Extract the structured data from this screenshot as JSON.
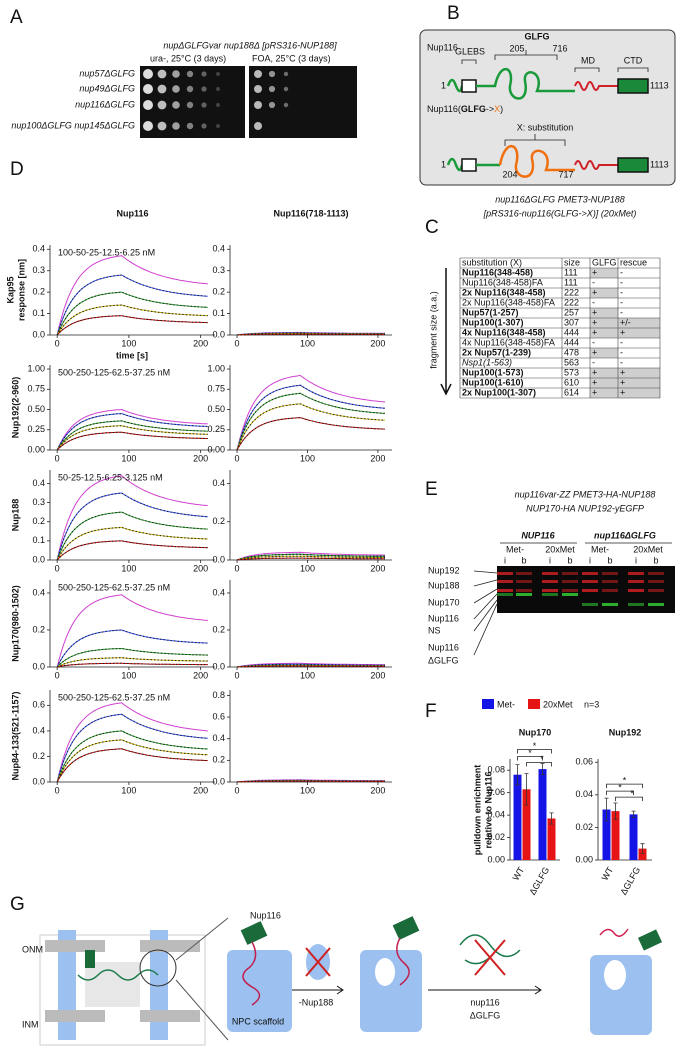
{
  "A": {
    "label": "A",
    "title": "nupΔGLFGvar nup188Δ [pRS316-NUP188]",
    "conditions": [
      "ura-, 25°C (3 days)",
      "FOA, 25°C (3 days)"
    ],
    "strains": [
      "nup57ΔGLFG",
      "nup49ΔGLFG",
      "nup116ΔGLFG",
      "nup100ΔGLFG nup145ΔGLFG"
    ]
  },
  "B": {
    "label": "B",
    "protein": "Nup116",
    "domains": [
      "GLEBS",
      "GLFG",
      "MD",
      "CTD"
    ],
    "residues": [
      1,
      205,
      716,
      1113
    ],
    "variant": [
      "Nup116(",
      "GLFG",
      "->",
      "X",
      ")"
    ],
    "substitution": "X: substitution",
    "variant_residues": [
      1,
      204,
      717,
      1113
    ]
  },
  "C": {
    "label": "C",
    "title_lines": [
      "nup116ΔGLFG  PMET3-NUP188",
      "[pRS316-nup116(GLFG->X)]  (20xMet)"
    ],
    "axis_label": "fragment size (a.a.)",
    "header": [
      "substitution (X)",
      "size",
      "GLFG",
      "rescue"
    ],
    "rows": [
      [
        "Nup116(348-458)",
        111,
        "+",
        "-"
      ],
      [
        "Nup116(348-458)FA",
        111,
        "-",
        "-"
      ],
      [
        "2x Nup116(348-458)",
        222,
        "+",
        "-"
      ],
      [
        "2x Nup116(348-458)FA",
        222,
        "-",
        "-"
      ],
      [
        "Nup57(1-257)",
        257,
        "+",
        "-"
      ],
      [
        "Nup100(1-307)",
        307,
        "+",
        "+/-"
      ],
      [
        "4x Nup116(348-458)",
        444,
        "+",
        "+"
      ],
      [
        "4x Nup116(348-458)FA",
        444,
        "-",
        "-"
      ],
      [
        "2x Nup57(1-239)",
        478,
        "+",
        "-"
      ],
      [
        "Nsp1(1-563)",
        563,
        "-",
        "-"
      ],
      [
        "Nup100(1-573)",
        573,
        "+",
        "+"
      ],
      [
        "Nup100(1-610)",
        610,
        "+",
        "+"
      ],
      [
        "2x Nup100(1-307)",
        614,
        "+",
        "+"
      ]
    ]
  },
  "D": {
    "label": "D",
    "columns": [
      "Nup116",
      "Nup116(718-1113)"
    ],
    "time_label": "time [s]",
    "xlim": [
      -10,
      220
    ],
    "xticks": [
      0,
      100,
      200
    ],
    "colors": [
      "#d040d0",
      "#3050ff",
      "#20a020",
      "#c8b400",
      "#c00000"
    ],
    "rows": [
      {
        "ylabel": [
          "Kap95",
          "response [nm]"
        ],
        "conc": "100-50-25-12.5-6.25 nM",
        "plots": [
          {
            "ylim": [
              0,
              0.42
            ],
            "yticks": [
              {
                "value": 0,
                "label": "0.0"
              },
              0.1,
              0.2,
              0.3,
              0.4
            ],
            "peaks": [
              0.37,
              0.28,
              0.2,
              0.14,
              0.09
            ]
          },
          {
            "ylim": [
              0,
              0.42
            ],
            "yticks": [
              {
                "value": 0,
                "label": "0.0"
              },
              0.1,
              0.2,
              0.3,
              0.4
            ],
            "peaks": [
              0.012,
              0.01,
              0.008,
              0.006,
              0.004
            ]
          }
        ]
      },
      {
        "ylabel": [
          "Nup192(2-960)"
        ],
        "conc": "500-250-125-62.5-37.25 nM",
        "plots": [
          {
            "ylim": [
              0,
              1.05
            ],
            "yticks": [
              {
                "value": 0,
                "label": "0.00"
              },
              0.25,
              {
                "value": 0.5,
                "label": "0.50"
              },
              0.75,
              {
                "value": 1,
                "label": "1.00"
              }
            ],
            "peaks": [
              0.5,
              0.45,
              0.36,
              0.3,
              0.22
            ]
          },
          {
            "ylim": [
              0,
              1.05
            ],
            "yticks": [
              {
                "value": 0,
                "label": "0.00"
              },
              0.25,
              {
                "value": 0.5,
                "label": "0.50"
              },
              0.75,
              {
                "value": 1,
                "label": "1.00"
              }
            ],
            "peaks": [
              0.92,
              0.8,
              0.7,
              0.57,
              0.4
            ]
          }
        ]
      },
      {
        "ylabel": [
          "Nup188"
        ],
        "conc": "50-25-12.5-6.25-3.125 nM",
        "plots": [
          {
            "ylim": [
              0,
              0.47
            ],
            "yticks": [
              {
                "value": 0,
                "label": "0.0"
              },
              0.1,
              0.2,
              0.3,
              0.4
            ],
            "peaks": [
              0.44,
              0.35,
              0.25,
              0.17,
              0.1
            ]
          },
          {
            "ylim": [
              0,
              0.47
            ],
            "yticks": [
              {
                "value": 0,
                "label": "0.0"
              },
              0.2,
              0.4
            ],
            "peaks": [
              0.04,
              0.03,
              0.03,
              0.02,
              0.01
            ]
          }
        ]
      },
      {
        "ylabel": [
          "Nup170(980-1502)"
        ],
        "conc": "500-250-125-62.5-37.25 nM",
        "plots": [
          {
            "ylim": [
              0,
              0.47
            ],
            "yticks": [
              {
                "value": 0,
                "label": "0.0"
              },
              0.2,
              0.4
            ],
            "peaks": [
              0.39,
              0.2,
              0.1,
              0.05,
              0.02
            ]
          },
          {
            "ylim": [
              0,
              0.47
            ],
            "yticks": [
              {
                "value": 0,
                "label": "0.0"
              },
              0.2,
              0.4
            ],
            "peaks": [
              0.02,
              0.015,
              0.01,
              0.008,
              0.005
            ]
          }
        ]
      },
      {
        "ylabel": [
          "Nup84-133(521-1157)"
        ],
        "conc": "500-250-125-62.5-37.25 nM",
        "plots": [
          {
            "ylim": [
              0,
              0.72
            ],
            "yticks": [
              {
                "value": 0,
                "label": "0.0"
              },
              0.2,
              0.4,
              0.6
            ],
            "peaks": [
              0.62,
              0.53,
              0.4,
              0.33,
              0.26
            ]
          },
          {
            "ylim": [
              0,
              0.85
            ],
            "yticks": [
              {
                "value": 0,
                "label": "0.0"
              },
              0.2,
              0.4,
              0.6,
              0.8
            ],
            "peaks": [
              0.02,
              0.015,
              0.012,
              0.01,
              0.008
            ]
          }
        ]
      }
    ]
  },
  "E": {
    "label": "E",
    "title_lines": [
      "nup116var-ZZ PMET3-HA-NUP188",
      "NUP170-HA  NUP192-yEGFP"
    ],
    "groups": [
      "NUP116",
      "nup116ΔGLFG"
    ],
    "conditions": [
      "Met-",
      "20xMet"
    ],
    "lanes": [
      "i",
      "b"
    ],
    "bands": [
      {
        "text": "Nup192",
        "color": "#e01010"
      },
      {
        "text": "Nup188",
        "color": "#e01010"
      },
      {
        "text": "Nup170",
        "color": "#e01010"
      },
      {
        "text": "Nup116",
        "color": "#119911"
      },
      {
        "text": "NS",
        "color": "#e01010"
      },
      {
        "text": "Nup116",
        "color": "#119911"
      },
      {
        "text": "ΔGLFG",
        "color": "#119911"
      }
    ]
  },
  "F": {
    "label": "F",
    "legend": [
      {
        "name": "Met-",
        "color": "#1414e6"
      },
      {
        "name": "20xMet",
        "color": "#e61414"
      }
    ],
    "n": "n=3",
    "ylabel": [
      "pulldown enrichment",
      "relative to Nup116"
    ],
    "charts": [
      {
        "title": "Nup170",
        "categories": [
          "WT",
          "ΔGLFG"
        ],
        "ylim": [
          0,
          0.09
        ],
        "yticks": [
          {
            "value": 0,
            "label": "0.00"
          },
          {
            "value": 0.02,
            "label": "0.02"
          },
          {
            "value": 0.04,
            "label": "0.04"
          },
          {
            "value": 0.06,
            "label": "0.06"
          },
          {
            "value": 0.08,
            "label": "0.08"
          }
        ],
        "series": [
          {
            "values": [
              0.076,
              0.081
            ],
            "errors": [
              0.009,
              0.005
            ]
          },
          {
            "values": [
              0.063,
              0.037
            ],
            "errors": [
              0.014,
              0.005
            ]
          }
        ],
        "significance": [
          "*",
          "*",
          "*"
        ]
      },
      {
        "title": "Nup192",
        "categories": [
          "WT",
          "ΔGLFG"
        ],
        "ylim": [
          0,
          0.062
        ],
        "yticks": [
          {
            "value": 0,
            "label": "0.00"
          },
          {
            "value": 0.02,
            "label": "0.02"
          },
          {
            "value": 0.04,
            "label": "0.04"
          },
          {
            "value": 0.06,
            "label": "0.06"
          }
        ],
        "series": [
          {
            "values": [
              0.031,
              0.028
            ],
            "errors": [
              0.007,
              0.002
            ]
          },
          {
            "values": [
              0.03,
              0.007
            ],
            "errors": [
              0.005,
              0.003
            ]
          }
        ],
        "significance": [
          "*",
          "*",
          "*"
        ]
      }
    ]
  },
  "G": {
    "label": "G",
    "labels": [
      "ONM",
      "INM",
      "Nup116",
      "NPC scaffold",
      "-Nup188",
      "nup116",
      "ΔGLFG"
    ]
  }
}
